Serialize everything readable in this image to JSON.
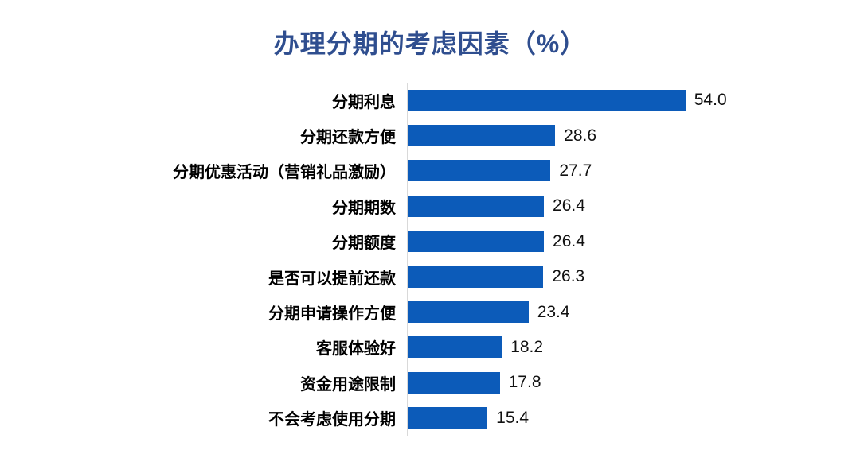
{
  "title": {
    "text": "办理分期的考虑因素（%）",
    "color": "#2F4E8F"
  },
  "chart_data": {
    "type": "bar",
    "orientation": "horizontal",
    "title": "办理分期的考虑因素（%）",
    "xlabel": "",
    "ylabel": "",
    "xlim": [
      0,
      60
    ],
    "grid": false,
    "legend": false,
    "bar_color": "#0C5BB9",
    "axis_line_color": "#D9D9D9",
    "categories": [
      "分期利息",
      "分期还款方便",
      "分期优惠活动（营销礼品激励）",
      "分期期数",
      "分期额度",
      "是否可以提前还款",
      "分期申请操作方便",
      "客服体验好",
      "资金用途限制",
      "不会考虑使用分期"
    ],
    "values": [
      54.0,
      28.6,
      27.7,
      26.4,
      26.4,
      26.3,
      23.4,
      18.2,
      17.8,
      15.4
    ],
    "value_labels": [
      "54.0",
      "28.6",
      "27.7",
      "26.4",
      "26.4",
      "26.3",
      "23.4",
      "18.2",
      "17.8",
      "15.4"
    ]
  }
}
